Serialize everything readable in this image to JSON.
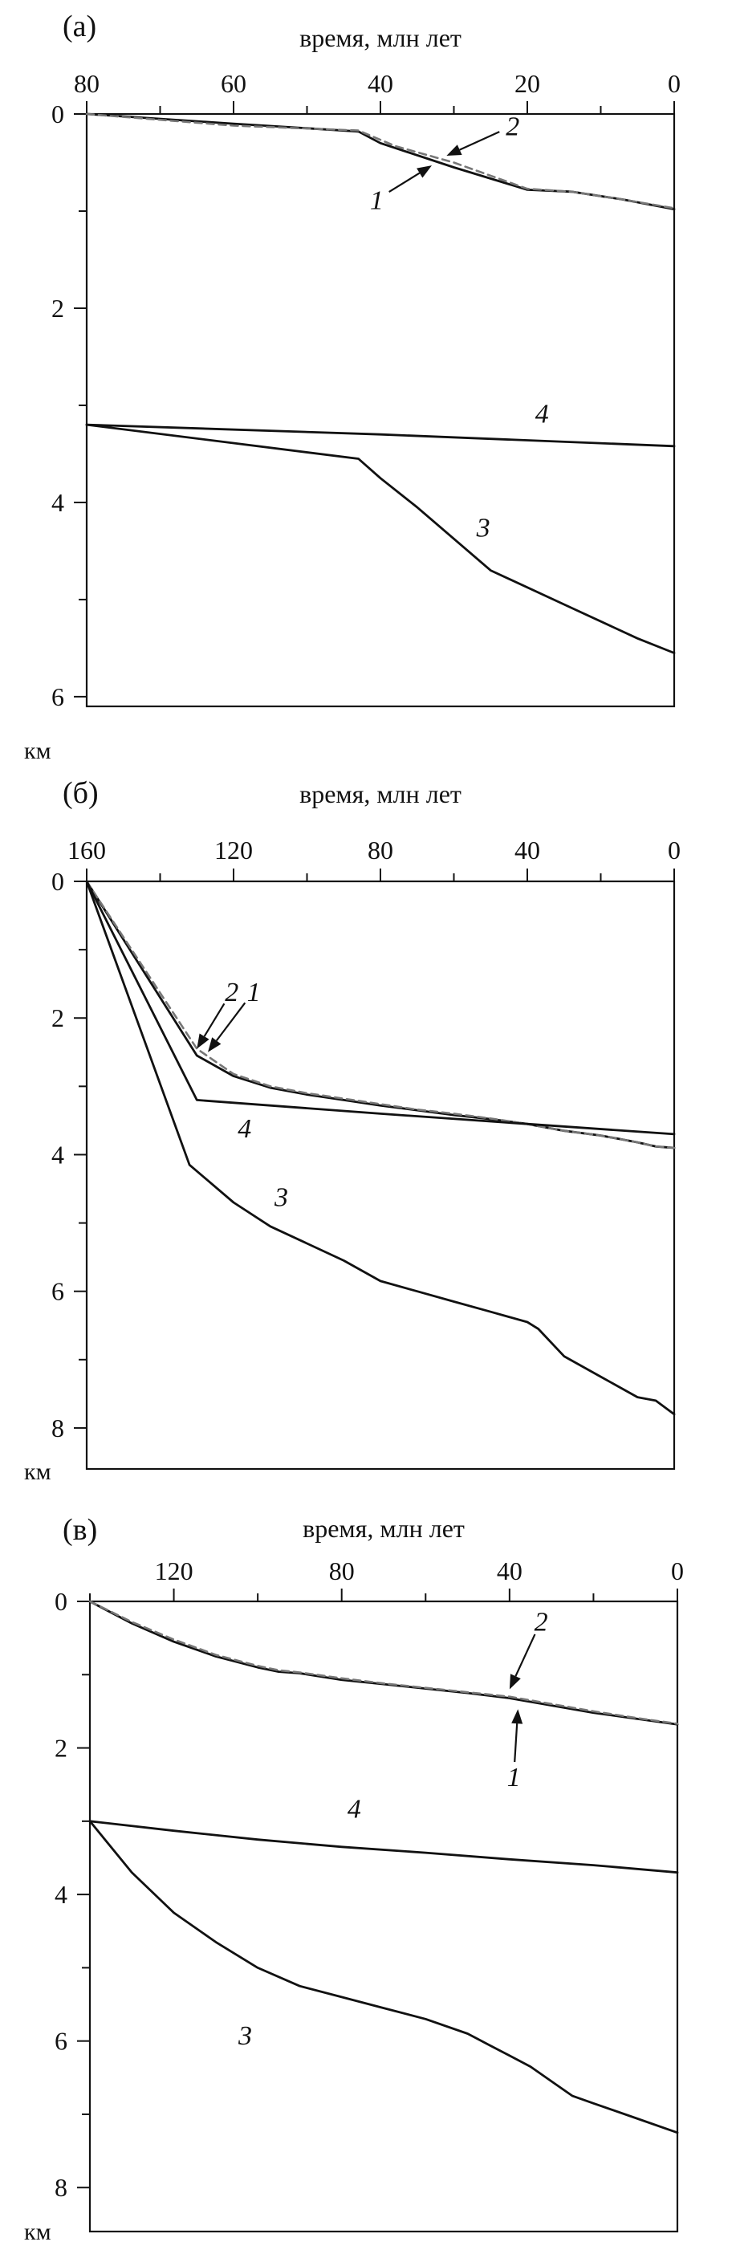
{
  "colors": {
    "solid": "#111111",
    "dashed": "#777777"
  },
  "chart_data": [
    {
      "type": "line",
      "panel_label": "(а)",
      "xlabel": "время, млн лет",
      "ylabel": "км",
      "x_reversed": true,
      "y_reversed": true,
      "xlim": [
        80,
        0
      ],
      "ylim": [
        0,
        6.1
      ],
      "x_ticks": [
        80,
        60,
        40,
        20,
        0
      ],
      "y_ticks": [
        0,
        2,
        4,
        6
      ],
      "series": [
        {
          "name": "1",
          "style": "solid",
          "x": [
            80,
            60,
            43,
            40,
            30,
            20,
            14,
            7,
            0
          ],
          "y": [
            0,
            0.1,
            0.18,
            0.3,
            0.55,
            0.78,
            0.8,
            0.88,
            0.98
          ]
        },
        {
          "name": "2",
          "style": "dashed",
          "x": [
            80,
            60,
            43,
            38,
            30,
            20,
            14,
            7,
            0
          ],
          "y": [
            0,
            0.12,
            0.17,
            0.33,
            0.5,
            0.77,
            0.8,
            0.88,
            0.97
          ]
        },
        {
          "name": "3",
          "style": "solid",
          "x": [
            80,
            43,
            40,
            35,
            25,
            15,
            5,
            0
          ],
          "y": [
            3.2,
            3.55,
            3.75,
            4.05,
            4.7,
            5.05,
            5.4,
            5.55
          ]
        },
        {
          "name": "4",
          "style": "solid",
          "x": [
            80,
            40,
            0
          ],
          "y": [
            3.2,
            3.3,
            3.42
          ]
        }
      ],
      "annotations": [
        {
          "text": "1",
          "label_x": 40.5,
          "label_y": 0.98,
          "arrow_to_x": 33,
          "arrow_to_y": 0.53
        },
        {
          "text": "2",
          "label_x": 22,
          "label_y": 0.22,
          "arrow_to_x": 31,
          "arrow_to_y": 0.43
        },
        {
          "text": "3",
          "label_x": 26,
          "label_y": 4.35
        },
        {
          "text": "4",
          "label_x": 18,
          "label_y": 3.18
        }
      ]
    },
    {
      "type": "line",
      "panel_label": "(б)",
      "xlabel": "время, млн лет",
      "ylabel": "км",
      "x_reversed": true,
      "y_reversed": true,
      "xlim": [
        160,
        0
      ],
      "ylim": [
        0,
        8.6
      ],
      "x_ticks": [
        160,
        120,
        80,
        40,
        0
      ],
      "y_ticks": [
        0,
        2,
        4,
        6,
        8
      ],
      "series": [
        {
          "name": "1",
          "style": "solid",
          "x": [
            160,
            130,
            120,
            110,
            100,
            90,
            80,
            70,
            60,
            50,
            40,
            30,
            20,
            10,
            5,
            0
          ],
          "y": [
            0,
            2.55,
            2.85,
            3.02,
            3.12,
            3.2,
            3.28,
            3.35,
            3.42,
            3.48,
            3.55,
            3.65,
            3.72,
            3.82,
            3.88,
            3.9
          ]
        },
        {
          "name": "2",
          "style": "dashed",
          "x": [
            160,
            130,
            120,
            110,
            100,
            90,
            80,
            70,
            60,
            50,
            40,
            30,
            20,
            10,
            5,
            0
          ],
          "y": [
            0,
            2.45,
            2.82,
            3.0,
            3.1,
            3.18,
            3.26,
            3.34,
            3.4,
            3.47,
            3.55,
            3.65,
            3.72,
            3.82,
            3.88,
            3.9
          ]
        },
        {
          "name": "3",
          "style": "solid",
          "x": [
            160,
            132,
            120,
            110,
            90,
            80,
            70,
            60,
            50,
            40,
            37,
            30,
            20,
            10,
            5,
            0
          ],
          "y": [
            0,
            4.15,
            4.7,
            5.05,
            5.55,
            5.85,
            6.0,
            6.15,
            6.3,
            6.45,
            6.55,
            6.95,
            7.25,
            7.55,
            7.6,
            7.8
          ]
        },
        {
          "name": "4",
          "style": "solid",
          "x": [
            160,
            130,
            80,
            40,
            0
          ],
          "y": [
            0,
            3.2,
            3.4,
            3.55,
            3.7
          ]
        }
      ],
      "annotations": [
        {
          "text": "1",
          "label_x": 114.5,
          "label_y": 1.75,
          "arrow_to_x": 127,
          "arrow_to_y": 2.5
        },
        {
          "text": "2",
          "label_x": 120.5,
          "label_y": 1.75,
          "arrow_to_x": 130,
          "arrow_to_y": 2.45
        },
        {
          "text": "3",
          "label_x": 107,
          "label_y": 4.75
        },
        {
          "text": "4",
          "label_x": 117,
          "label_y": 3.75
        }
      ]
    },
    {
      "type": "line",
      "panel_label": "(в)",
      "xlabel": "время, млн лет",
      "ylabel": "км",
      "x_reversed": true,
      "y_reversed": true,
      "xlim": [
        140,
        0
      ],
      "ylim": [
        0,
        8.6
      ],
      "x_ticks": [
        120,
        80,
        40,
        0
      ],
      "y_ticks": [
        0,
        2,
        4,
        6,
        8
      ],
      "series": [
        {
          "name": "1",
          "style": "solid",
          "x": [
            140,
            130,
            120,
            110,
            100,
            95,
            90,
            80,
            70,
            60,
            50,
            40,
            30,
            20,
            10,
            0
          ],
          "y": [
            0,
            0.3,
            0.55,
            0.75,
            0.9,
            0.96,
            0.98,
            1.07,
            1.13,
            1.19,
            1.25,
            1.32,
            1.42,
            1.52,
            1.6,
            1.68
          ]
        },
        {
          "name": "2",
          "style": "dashed",
          "x": [
            140,
            130,
            120,
            110,
            100,
            95,
            90,
            80,
            70,
            60,
            50,
            40,
            30,
            20,
            10,
            0
          ],
          "y": [
            0,
            0.28,
            0.52,
            0.73,
            0.88,
            0.94,
            0.97,
            1.05,
            1.12,
            1.18,
            1.24,
            1.3,
            1.4,
            1.5,
            1.59,
            1.67
          ]
        },
        {
          "name": "3",
          "style": "solid",
          "x": [
            140,
            130,
            120,
            110,
            100,
            90,
            80,
            70,
            60,
            50,
            45,
            40,
            35,
            30,
            25,
            20,
            10,
            0
          ],
          "y": [
            3.0,
            3.7,
            4.25,
            4.65,
            5.0,
            5.25,
            5.4,
            5.55,
            5.7,
            5.9,
            6.05,
            6.2,
            6.35,
            6.55,
            6.75,
            6.85,
            7.05,
            7.25
          ]
        },
        {
          "name": "4",
          "style": "solid",
          "x": [
            140,
            120,
            100,
            80,
            60,
            40,
            20,
            0
          ],
          "y": [
            3.0,
            3.13,
            3.25,
            3.35,
            3.43,
            3.52,
            3.6,
            3.7
          ]
        }
      ],
      "annotations": [
        {
          "text": "1",
          "label_x": 39,
          "label_y": 2.52,
          "arrow_to_x": 38,
          "arrow_to_y": 1.47
        },
        {
          "text": "2",
          "label_x": 32.5,
          "label_y": 0.4,
          "arrow_to_x": 40,
          "arrow_to_y": 1.2
        },
        {
          "text": "3",
          "label_x": 103,
          "label_y": 6.05
        },
        {
          "text": "4",
          "label_x": 77,
          "label_y": 2.95
        }
      ]
    }
  ]
}
